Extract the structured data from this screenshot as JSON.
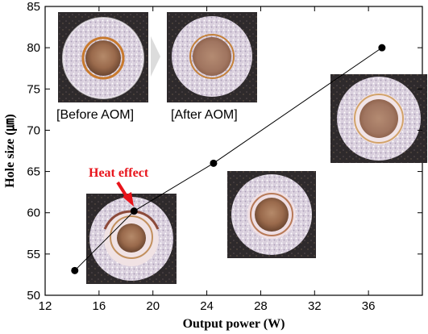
{
  "chart_data": {
    "type": "scatter",
    "title": "",
    "xlabel": "Output power (W)",
    "ylabel": "Hole size (㎛)",
    "xlim": [
      12,
      40
    ],
    "ylim": [
      50,
      85
    ],
    "xticks": [
      12,
      16,
      20,
      24,
      28,
      32,
      36
    ],
    "yticks": [
      50,
      55,
      60,
      65,
      70,
      75,
      80,
      85
    ],
    "grid": false,
    "legend": "none",
    "series": [
      {
        "x": [
          14.2,
          18.6,
          24.5,
          37.0
        ],
        "y": [
          53,
          60.2,
          66,
          80
        ]
      }
    ],
    "annotations": [
      {
        "text": "Heat effect",
        "color": "#e8141b"
      }
    ],
    "inset_labels": [
      "[Before AOM]",
      "[After AOM]"
    ]
  },
  "colors": {
    "annotation": "#e8141b",
    "line": "#000000",
    "marker": "#000000"
  }
}
